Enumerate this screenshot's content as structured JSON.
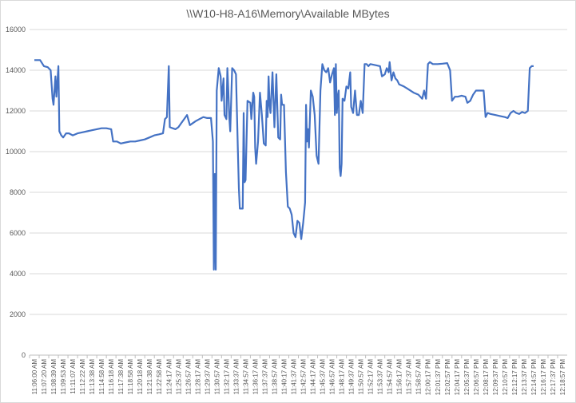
{
  "chart_data": {
    "type": "line",
    "title": "\\\\W10-H8-A16\\Memory\\Available MBytes",
    "xlabel": "",
    "ylabel": "",
    "ylim": [
      0,
      16000
    ],
    "y_ticks": [
      "0",
      "2000",
      "4000",
      "6000",
      "8000",
      "10000",
      "12000",
      "14000",
      "16000"
    ],
    "grid": "horizontal",
    "line_color": "#4472c4",
    "x_ticks": [
      "11:06:00 AM",
      "11:07:20 AM",
      "11:08:39 AM",
      "11:09:53 AM",
      "11:11:07 AM",
      "11:12:22 AM",
      "11:13:38 AM",
      "11:14:58 AM",
      "11:16:18 AM",
      "11:17:38 AM",
      "11:18:58 AM",
      "11:20:18 AM",
      "11:21:38 AM",
      "11:22:58 AM",
      "11:24:17 AM",
      "11:25:37 AM",
      "11:26:57 AM",
      "11:28:17 AM",
      "11:29:37 AM",
      "11:30:57 AM",
      "11:32:17 AM",
      "11:33:37 AM",
      "11:34:57 AM",
      "11:36:17 AM",
      "11:37:37 AM",
      "11:38:57 AM",
      "11:40:17 AM",
      "11:41:37 AM",
      "11:42:57 AM",
      "11:44:17 AM",
      "11:45:37 AM",
      "11:46:57 AM",
      "11:48:17 AM",
      "11:49:37 AM",
      "11:50:57 AM",
      "11:52:17 AM",
      "11:53:37 AM",
      "11:54:57 AM",
      "11:56:17 AM",
      "11:57:37 AM",
      "11:58:57 AM",
      "12:00:17 PM",
      "12:01:37 PM",
      "12:02:57 PM",
      "12:04:17 PM",
      "12:05:37 PM",
      "12:06:57 PM",
      "12:08:17 PM",
      "12:09:37 PM",
      "12:10:57 PM",
      "12:12:17 PM",
      "12:13:37 PM",
      "12:14:57 PM",
      "12:16:17 PM",
      "12:17:37 PM",
      "12:18:57 PM"
    ],
    "series": [
      {
        "name": "",
        "points": [
          [
            0.0,
            14500
          ],
          [
            0.6,
            14500
          ],
          [
            1.0,
            14200
          ],
          [
            1.4,
            14150
          ],
          [
            1.7,
            14000
          ],
          [
            1.9,
            12600
          ],
          [
            2.0,
            12300
          ],
          [
            2.2,
            13700
          ],
          [
            2.3,
            12700
          ],
          [
            2.5,
            14200
          ],
          [
            2.6,
            11000
          ],
          [
            2.8,
            10800
          ],
          [
            3.0,
            10700
          ],
          [
            3.3,
            10900
          ],
          [
            3.6,
            10900
          ],
          [
            4.0,
            10800
          ],
          [
            4.5,
            10900
          ],
          [
            5.0,
            10950
          ],
          [
            5.5,
            11000
          ],
          [
            6.0,
            11050
          ],
          [
            6.5,
            11100
          ],
          [
            7.0,
            11150
          ],
          [
            7.5,
            11150
          ],
          [
            8.0,
            11100
          ],
          [
            8.2,
            10500
          ],
          [
            8.6,
            10500
          ],
          [
            9.0,
            10400
          ],
          [
            9.5,
            10450
          ],
          [
            10.0,
            10500
          ],
          [
            10.5,
            10500
          ],
          [
            11.0,
            10550
          ],
          [
            11.5,
            10600
          ],
          [
            12.0,
            10700
          ],
          [
            12.5,
            10800
          ],
          [
            13.0,
            10850
          ],
          [
            13.4,
            10900
          ],
          [
            13.6,
            11600
          ],
          [
            13.8,
            11700
          ],
          [
            14.0,
            14200
          ],
          [
            14.1,
            11200
          ],
          [
            14.4,
            11150
          ],
          [
            14.7,
            11100
          ],
          [
            15.0,
            11200
          ],
          [
            15.3,
            11400
          ],
          [
            15.6,
            11600
          ],
          [
            15.9,
            11800
          ],
          [
            16.2,
            11300
          ],
          [
            16.5,
            11400
          ],
          [
            16.8,
            11500
          ],
          [
            17.2,
            11600
          ],
          [
            17.6,
            11700
          ],
          [
            18.0,
            11650
          ],
          [
            18.4,
            11650
          ],
          [
            18.6,
            10500
          ],
          [
            18.7,
            4200
          ],
          [
            18.8,
            8900
          ],
          [
            18.9,
            4200
          ],
          [
            19.0,
            13000
          ],
          [
            19.2,
            14100
          ],
          [
            19.4,
            13700
          ],
          [
            19.5,
            12500
          ],
          [
            19.7,
            13600
          ],
          [
            19.8,
            11800
          ],
          [
            20.0,
            11600
          ],
          [
            20.1,
            14100
          ],
          [
            20.2,
            13000
          ],
          [
            20.3,
            11700
          ],
          [
            20.4,
            11000
          ],
          [
            20.6,
            14100
          ],
          [
            20.8,
            14000
          ],
          [
            21.0,
            13800
          ],
          [
            21.2,
            10000
          ],
          [
            21.3,
            8200
          ],
          [
            21.4,
            7200
          ],
          [
            21.7,
            7200
          ],
          [
            21.8,
            11900
          ],
          [
            21.9,
            8500
          ],
          [
            22.0,
            8600
          ],
          [
            22.2,
            12500
          ],
          [
            22.5,
            12400
          ],
          [
            22.6,
            11600
          ],
          [
            22.8,
            12900
          ],
          [
            22.9,
            12700
          ],
          [
            23.0,
            10200
          ],
          [
            23.1,
            9400
          ],
          [
            23.3,
            10500
          ],
          [
            23.5,
            12900
          ],
          [
            23.7,
            11800
          ],
          [
            23.9,
            10400
          ],
          [
            24.1,
            10300
          ],
          [
            24.2,
            12500
          ],
          [
            24.3,
            11700
          ],
          [
            24.4,
            13700
          ],
          [
            24.5,
            12300
          ],
          [
            24.6,
            11900
          ],
          [
            24.8,
            13900
          ],
          [
            25.0,
            11200
          ],
          [
            25.2,
            13800
          ],
          [
            25.4,
            10700
          ],
          [
            25.6,
            10600
          ],
          [
            25.7,
            12800
          ],
          [
            25.8,
            12300
          ],
          [
            26.0,
            12300
          ],
          [
            26.2,
            9000
          ],
          [
            26.4,
            7300
          ],
          [
            26.6,
            7200
          ],
          [
            26.8,
            6900
          ],
          [
            27.0,
            6000
          ],
          [
            27.2,
            5800
          ],
          [
            27.4,
            6600
          ],
          [
            27.6,
            6500
          ],
          [
            27.8,
            5700
          ],
          [
            28.0,
            6500
          ],
          [
            28.2,
            7500
          ],
          [
            28.3,
            12300
          ],
          [
            28.4,
            10500
          ],
          [
            28.5,
            11100
          ],
          [
            28.6,
            10200
          ],
          [
            28.8,
            13000
          ],
          [
            29.0,
            12700
          ],
          [
            29.2,
            11800
          ],
          [
            29.4,
            9800
          ],
          [
            29.6,
            9400
          ],
          [
            29.8,
            13000
          ],
          [
            30.0,
            14300
          ],
          [
            30.2,
            14000
          ],
          [
            30.4,
            13900
          ],
          [
            30.6,
            14100
          ],
          [
            30.8,
            13400
          ],
          [
            31.0,
            13800
          ],
          [
            31.2,
            14100
          ],
          [
            31.3,
            11800
          ],
          [
            31.4,
            14300
          ],
          [
            31.5,
            11900
          ],
          [
            31.6,
            12700
          ],
          [
            31.7,
            13000
          ],
          [
            31.8,
            9200
          ],
          [
            31.9,
            8800
          ],
          [
            32.0,
            9400
          ],
          [
            32.1,
            12600
          ],
          [
            32.3,
            12500
          ],
          [
            32.5,
            13200
          ],
          [
            32.7,
            13100
          ],
          [
            32.9,
            13900
          ],
          [
            33.0,
            12200
          ],
          [
            33.2,
            11900
          ],
          [
            33.4,
            13000
          ],
          [
            33.6,
            11800
          ],
          [
            33.8,
            11800
          ],
          [
            34.0,
            12500
          ],
          [
            34.2,
            11900
          ],
          [
            34.4,
            14300
          ],
          [
            34.6,
            14300
          ],
          [
            34.8,
            14200
          ],
          [
            35.0,
            14300
          ],
          [
            35.5,
            14250
          ],
          [
            36.0,
            14200
          ],
          [
            36.2,
            13700
          ],
          [
            36.5,
            13800
          ],
          [
            36.7,
            14100
          ],
          [
            36.9,
            13900
          ],
          [
            37.0,
            14400
          ],
          [
            37.2,
            13500
          ],
          [
            37.4,
            13900
          ],
          [
            37.6,
            13600
          ],
          [
            37.8,
            13500
          ],
          [
            38.0,
            13300
          ],
          [
            38.5,
            13200
          ],
          [
            39.0,
            13050
          ],
          [
            39.5,
            12900
          ],
          [
            40.0,
            12800
          ],
          [
            40.4,
            12600
          ],
          [
            40.6,
            13000
          ],
          [
            40.8,
            12600
          ],
          [
            41.0,
            14300
          ],
          [
            41.2,
            14400
          ],
          [
            41.5,
            14300
          ],
          [
            42.0,
            14300
          ],
          [
            42.5,
            14320
          ],
          [
            43.0,
            14350
          ],
          [
            43.3,
            14000
          ],
          [
            43.5,
            12500
          ],
          [
            43.8,
            12700
          ],
          [
            44.1,
            12700
          ],
          [
            44.5,
            12750
          ],
          [
            44.9,
            12700
          ],
          [
            45.1,
            12400
          ],
          [
            45.4,
            12500
          ],
          [
            45.7,
            12800
          ],
          [
            46.0,
            13000
          ],
          [
            46.4,
            13000
          ],
          [
            46.8,
            13000
          ],
          [
            47.0,
            11700
          ],
          [
            47.2,
            11900
          ],
          [
            47.5,
            11850
          ],
          [
            48.0,
            11800
          ],
          [
            48.5,
            11750
          ],
          [
            49.0,
            11700
          ],
          [
            49.3,
            11650
          ],
          [
            49.6,
            11900
          ],
          [
            49.9,
            12000
          ],
          [
            50.2,
            11900
          ],
          [
            50.5,
            11850
          ],
          [
            50.8,
            11950
          ],
          [
            51.1,
            11900
          ],
          [
            51.4,
            12000
          ],
          [
            51.6,
            14100
          ],
          [
            51.8,
            14200
          ],
          [
            52.0,
            14200
          ]
        ]
      }
    ]
  }
}
